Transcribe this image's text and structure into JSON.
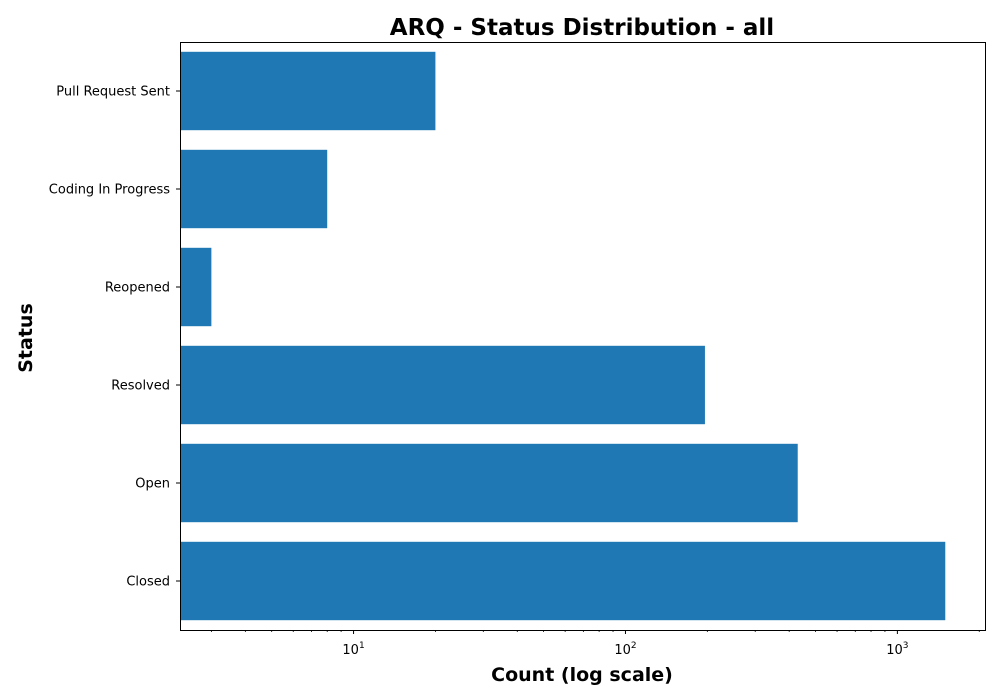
{
  "chart_data": {
    "type": "bar",
    "orientation": "horizontal",
    "title": "ARQ - Status Distribution - all",
    "xlabel": "Count (log scale)",
    "ylabel": "Status",
    "x_scale": "log",
    "xlim": [
      2.3,
      2100
    ],
    "x_major_ticks": [
      {
        "value": 10,
        "base": "10",
        "exp": "1"
      },
      {
        "value": 100,
        "base": "10",
        "exp": "2"
      },
      {
        "value": 1000,
        "base": "10",
        "exp": "3"
      }
    ],
    "categories": [
      "Closed",
      "Open",
      "Resolved",
      "Reopened",
      "Coding In Progress",
      "Pull Request Sent"
    ],
    "values": [
      1500,
      430,
      196,
      3,
      8,
      20
    ],
    "bar_color": "#1f77b4",
    "grid": false,
    "legend": "none"
  }
}
